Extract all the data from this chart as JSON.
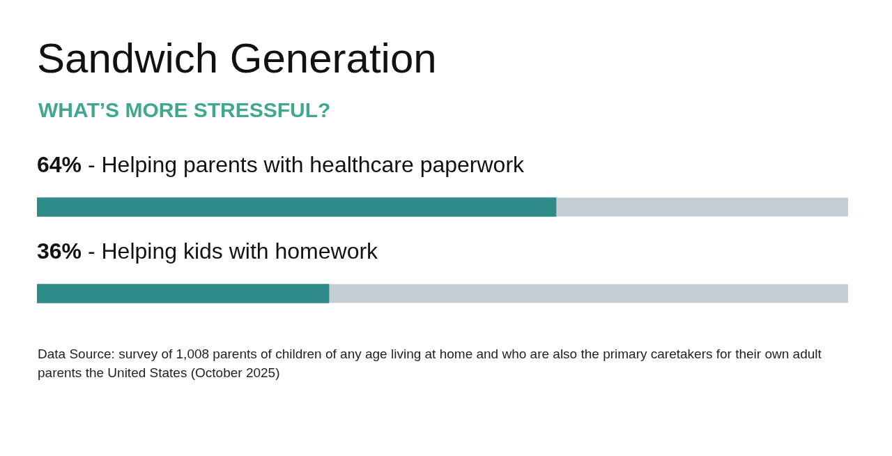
{
  "chart_data": {
    "type": "bar",
    "orientation": "horizontal",
    "title": "Sandwich Generation",
    "subtitle": "WHAT’S MORE STRESSFUL?",
    "categories": [
      "- Helping parents with healthcare paperwork",
      "- Helping kids with homework"
    ],
    "values": [
      64,
      36
    ],
    "value_labels": [
      "64%",
      "36%"
    ],
    "color": "#2f8a8a",
    "xlim": [
      0,
      100
    ],
    "tick_labels": false,
    "legend": false,
    "annotations": [
      "Data Source: survey of 1,008 parents of children of any age living at home and who are also the primary caretakers for their own adult parents the United States (October 2025)"
    ]
  }
}
